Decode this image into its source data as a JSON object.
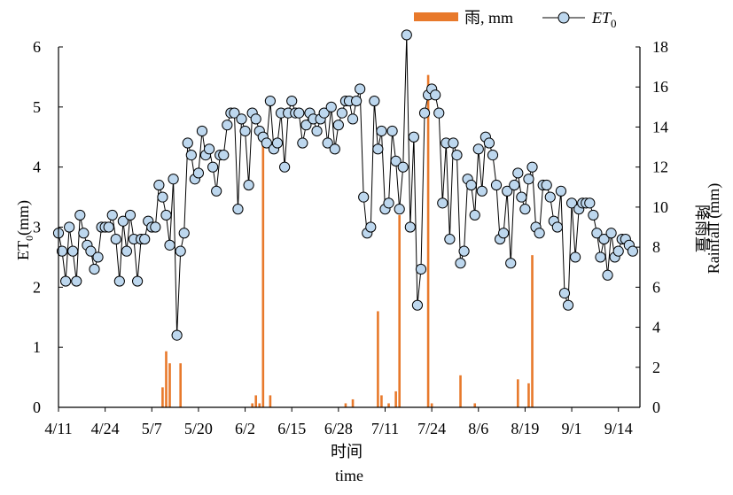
{
  "chart_data": {
    "type": "line",
    "legend": {
      "position": "top-right",
      "rain_label": "雨, mm",
      "et0_label_main": "ET",
      "et0_label_sub": "0"
    },
    "xlabel_cn": "时间",
    "xlabel_en": "time",
    "ylabel_left_main": "ET",
    "ylabel_left_sub": "0",
    "ylabel_left_unit": "(mm)",
    "ylabel_right_cn": "降雨量",
    "ylabel_right_en": "Rainfall (mm)",
    "x_tick_labels": [
      "4/11",
      "4/24",
      "5/7",
      "5/20",
      "6/2",
      "6/15",
      "6/28",
      "7/11",
      "7/24",
      "8/6",
      "8/19",
      "9/1",
      "9/14"
    ],
    "y_left_ticks": [
      "0",
      "1",
      "2",
      "3",
      "4",
      "5",
      "6"
    ],
    "y_right_ticks": [
      "0",
      "2",
      "4",
      "6",
      "8",
      "10",
      "12",
      "14",
      "16",
      "18"
    ],
    "y_left_range": [
      0,
      6
    ],
    "y_right_range": [
      0,
      18
    ],
    "x_range_days": [
      0,
      162
    ],
    "grid": false,
    "colors": {
      "rain": "#E8792B",
      "marker_fill": "#BDD7EE",
      "line": "#000000"
    },
    "et0_series": [
      2.9,
      2.6,
      2.1,
      3.0,
      2.6,
      2.1,
      3.2,
      2.9,
      2.7,
      2.6,
      2.3,
      2.5,
      3.0,
      3.0,
      3.0,
      3.2,
      2.8,
      2.1,
      3.1,
      2.6,
      3.2,
      2.8,
      2.1,
      2.8,
      2.8,
      3.1,
      3.0,
      3.0,
      3.7,
      3.5,
      3.2,
      2.7,
      3.8,
      1.2,
      2.6,
      2.9,
      4.4,
      4.2,
      3.8,
      3.9,
      4.6,
      4.2,
      4.3,
      4.0,
      3.6,
      4.2,
      4.2,
      4.7,
      4.9,
      4.9,
      3.3,
      4.8,
      4.6,
      3.7,
      4.9,
      4.8,
      4.6,
      4.5,
      4.4,
      5.1,
      4.3,
      4.4,
      4.9,
      4.0,
      4.9,
      5.1,
      4.9,
      4.9,
      4.4,
      4.7,
      4.9,
      4.8,
      4.6,
      4.8,
      4.9,
      4.4,
      5.0,
      4.3,
      4.7,
      4.9,
      5.1,
      5.1,
      4.8,
      5.1,
      5.3,
      3.5,
      2.9,
      3.0,
      5.1,
      4.3,
      4.6,
      3.3,
      3.4,
      4.6,
      4.1,
      3.3,
      4.0,
      6.2,
      3.0,
      4.5,
      1.7,
      2.3,
      4.9,
      5.2,
      5.3,
      5.2,
      4.9,
      3.4,
      4.4,
      2.8,
      4.4,
      4.2,
      2.4,
      2.6,
      3.8,
      3.7,
      3.2,
      4.3,
      3.6,
      4.5,
      4.4,
      4.2,
      3.7,
      2.8,
      2.9,
      3.6,
      2.4,
      3.7,
      3.9,
      3.5,
      3.3,
      3.8,
      4.0,
      3.0,
      2.9,
      3.7,
      3.7,
      3.5,
      3.1,
      3.0,
      3.6,
      1.9,
      1.7,
      3.4,
      2.5,
      3.3,
      3.4,
      3.4,
      3.4,
      3.2,
      2.9,
      2.5,
      2.8,
      2.2,
      2.9,
      2.5,
      2.6,
      2.8,
      2.8,
      2.7,
      2.6
    ],
    "rain_bars": [
      {
        "day": 29,
        "mm": 1.0
      },
      {
        "day": 30,
        "mm": 2.8
      },
      {
        "day": 31,
        "mm": 2.2
      },
      {
        "day": 34,
        "mm": 2.2
      },
      {
        "day": 54,
        "mm": 0.2
      },
      {
        "day": 55,
        "mm": 0.6
      },
      {
        "day": 56,
        "mm": 0.2
      },
      {
        "day": 57,
        "mm": 13.5
      },
      {
        "day": 59,
        "mm": 0.6
      },
      {
        "day": 80,
        "mm": 0.2
      },
      {
        "day": 82,
        "mm": 0.4
      },
      {
        "day": 89,
        "mm": 4.8
      },
      {
        "day": 90,
        "mm": 0.6
      },
      {
        "day": 92,
        "mm": 0.2
      },
      {
        "day": 94,
        "mm": 0.8
      },
      {
        "day": 95,
        "mm": 9.6
      },
      {
        "day": 103,
        "mm": 16.6
      },
      {
        "day": 104,
        "mm": 0.2
      },
      {
        "day": 112,
        "mm": 1.6
      },
      {
        "day": 116,
        "mm": 0.2
      },
      {
        "day": 128,
        "mm": 1.4
      },
      {
        "day": 131,
        "mm": 1.2
      },
      {
        "day": 132,
        "mm": 7.6
      }
    ]
  }
}
